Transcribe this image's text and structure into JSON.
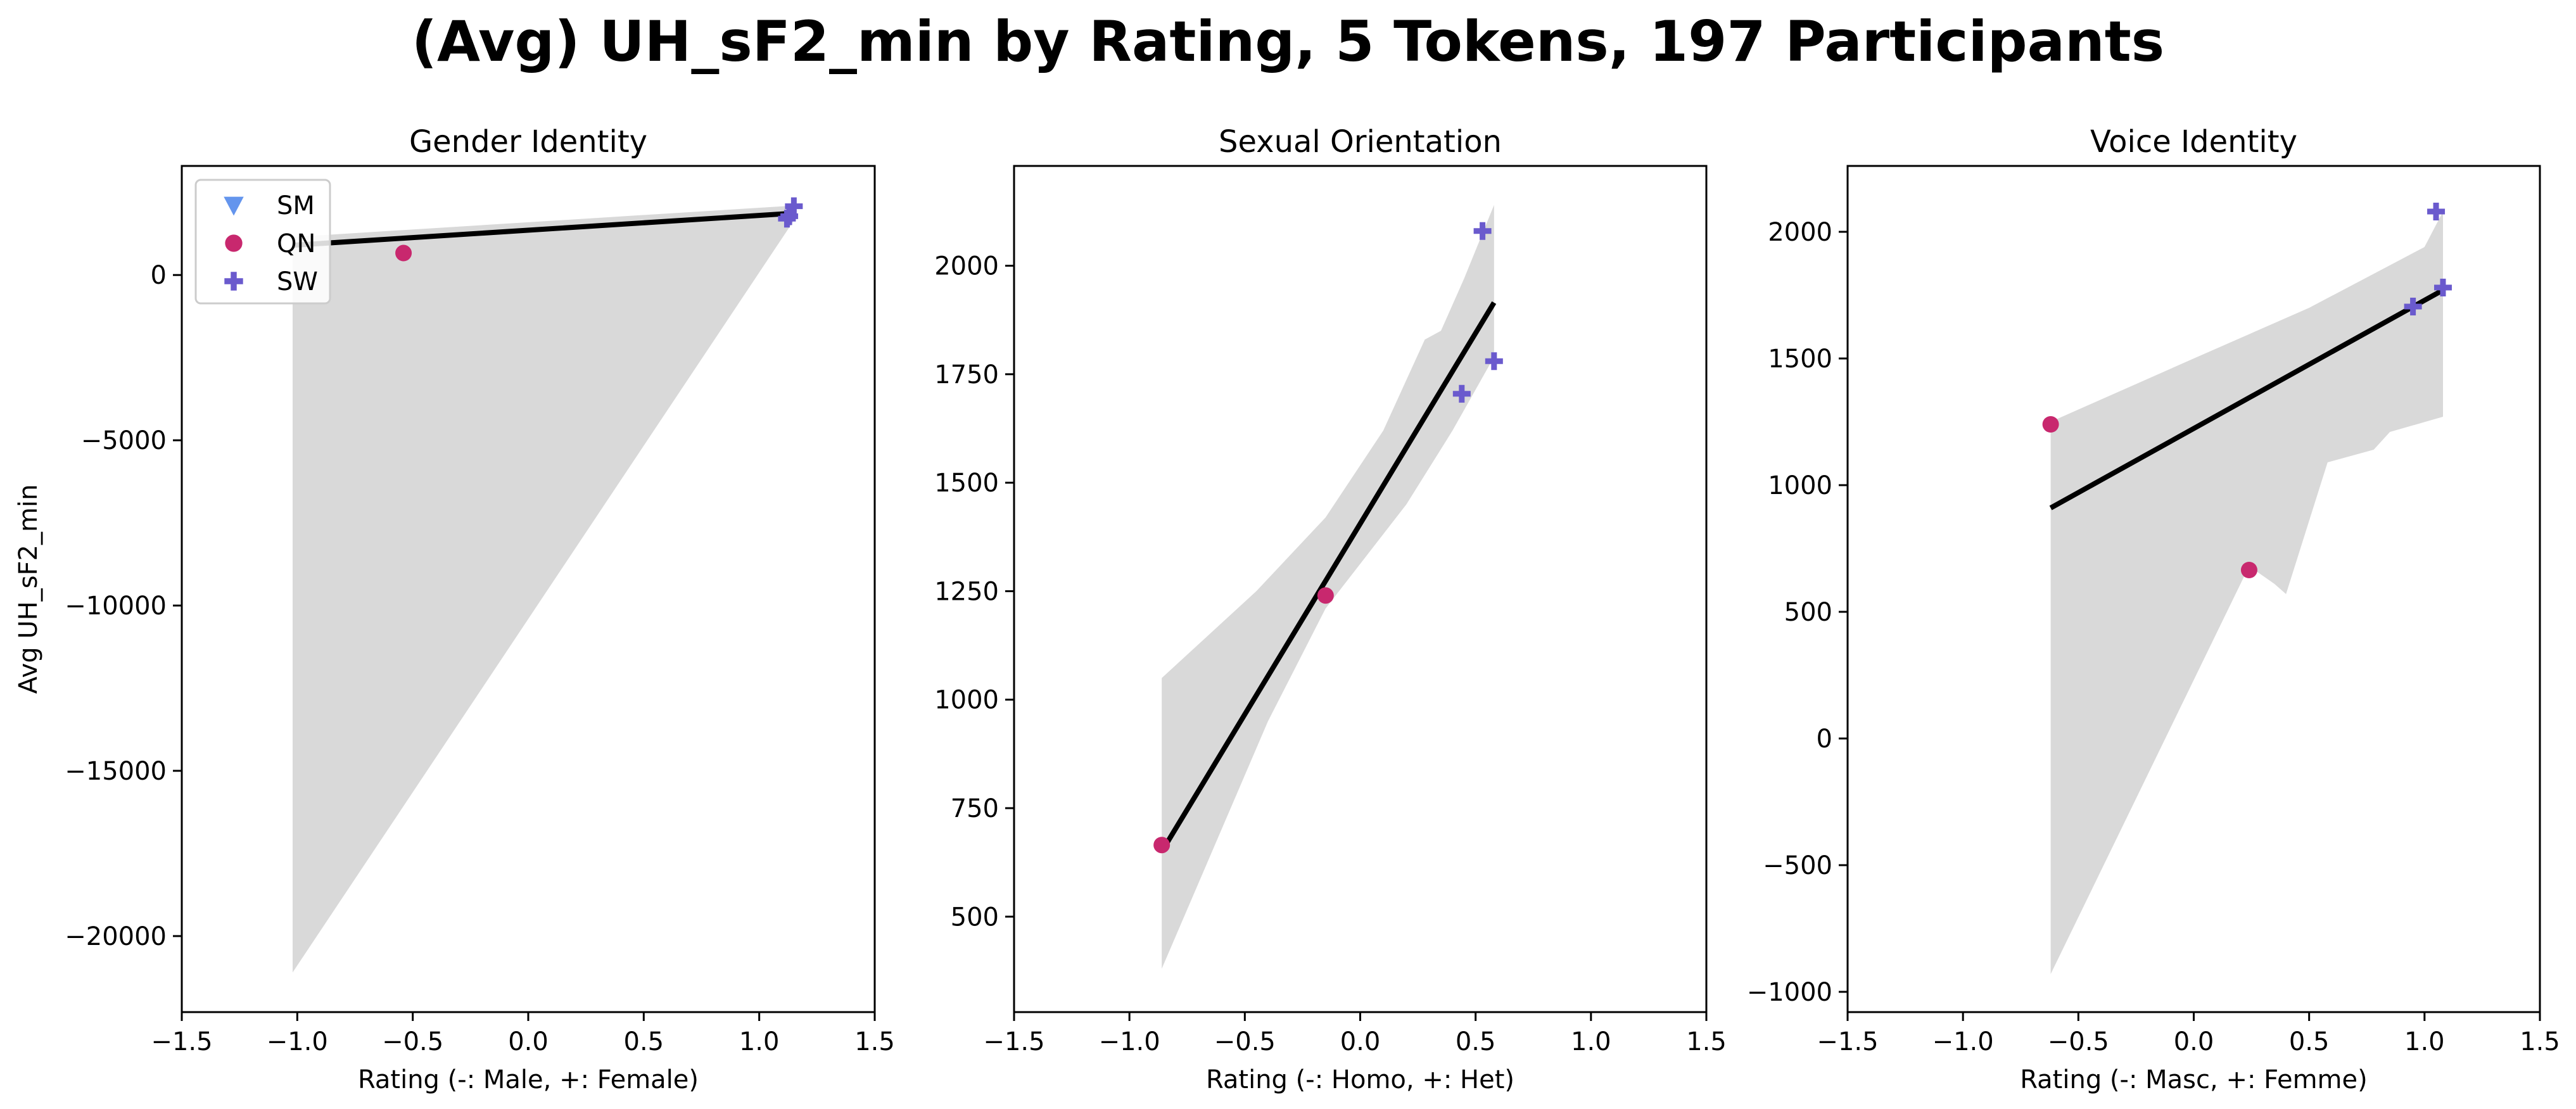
{
  "figure": {
    "title": "(Avg) UH_sF2_min by Rating, 5 Tokens, 197 Participants"
  },
  "colors": {
    "SM": "#6495ED",
    "QN": "#C8286E",
    "SW": "#6A5ACD",
    "fit": "#000000",
    "band": "#d9d9d9"
  },
  "chart_data": [
    {
      "type": "scatter",
      "title": "Gender Identity",
      "xlabel": "Rating (-: Male, +: Female)",
      "ylabel": "Avg UH_sF2_min",
      "xlim": [
        -1.5,
        1.5
      ],
      "ylim": [
        -22300,
        3300
      ],
      "xticks": [
        -1.5,
        -1.0,
        -0.5,
        0.0,
        0.5,
        1.0,
        1.5
      ],
      "yticks": [
        0,
        -5000,
        -10000,
        -15000,
        -20000
      ],
      "legend": {
        "placement": "top-left",
        "entries": [
          {
            "label": "SM",
            "marker": "triangle-down",
            "series": "SM"
          },
          {
            "label": "QN",
            "marker": "circle",
            "series": "QN"
          },
          {
            "label": "SW",
            "marker": "plus",
            "series": "SW"
          }
        ]
      },
      "series": [
        {
          "name": "QN",
          "marker": "circle",
          "points": [
            [
              -0.54,
              665
            ]
          ]
        },
        {
          "name": "SW",
          "marker": "plus",
          "points": [
            [
              1.12,
              1705
            ],
            [
              1.15,
              2080
            ],
            [
              1.13,
              1780
            ]
          ]
        }
      ],
      "fit": {
        "x": [
          -1.02,
          1.15
        ],
        "y": [
          900,
          1870
        ]
      },
      "ci": [
        [
          -1.02,
          1150
        ],
        [
          1.15,
          2100
        ],
        [
          1.15,
          1650
        ],
        [
          -1.02,
          -21100
        ]
      ]
    },
    {
      "type": "scatter",
      "title": "Sexual Orientation",
      "xlabel": "Rating (-: Homo, +: Het)",
      "ylabel": "",
      "xlim": [
        -1.5,
        1.5
      ],
      "ylim": [
        280,
        2230
      ],
      "xticks": [
        -1.5,
        -1.0,
        -0.5,
        0.0,
        0.5,
        1.0,
        1.5
      ],
      "yticks": [
        500,
        750,
        1000,
        1250,
        1500,
        1750,
        2000
      ],
      "series": [
        {
          "name": "QN",
          "marker": "circle",
          "points": [
            [
              -0.86,
              665
            ],
            [
              -0.15,
              1240
            ]
          ]
        },
        {
          "name": "SW",
          "marker": "plus",
          "points": [
            [
              0.53,
              2080
            ],
            [
              0.58,
              1780
            ],
            [
              0.44,
              1705
            ]
          ]
        }
      ],
      "fit": {
        "x": [
          -0.86,
          0.58
        ],
        "y": [
          650,
          1915
        ]
      },
      "ci": [
        [
          -0.86,
          1050
        ],
        [
          -0.45,
          1250
        ],
        [
          -0.15,
          1420
        ],
        [
          0.1,
          1620
        ],
        [
          0.28,
          1830
        ],
        [
          0.35,
          1850
        ],
        [
          0.45,
          1970
        ],
        [
          0.58,
          2140
        ],
        [
          0.58,
          1790
        ],
        [
          0.4,
          1620
        ],
        [
          0.2,
          1450
        ],
        [
          -0.15,
          1210
        ],
        [
          -0.4,
          950
        ],
        [
          -0.86,
          380
        ]
      ]
    },
    {
      "type": "scatter",
      "title": "Voice Identity",
      "xlabel": "Rating (-: Masc, +: Femme)",
      "ylabel": "",
      "xlim": [
        -1.5,
        1.5
      ],
      "ylim": [
        -1080,
        2260
      ],
      "xticks": [
        -1.5,
        -1.0,
        -0.5,
        0.0,
        0.5,
        1.0,
        1.5
      ],
      "yticks": [
        -1000,
        -500,
        0,
        500,
        1000,
        1500,
        2000
      ],
      "series": [
        {
          "name": "QN",
          "marker": "circle",
          "points": [
            [
              -0.62,
              1240
            ],
            [
              0.24,
              665
            ]
          ]
        },
        {
          "name": "SW",
          "marker": "plus",
          "points": [
            [
              1.05,
              2080
            ],
            [
              1.08,
              1780
            ],
            [
              0.95,
              1705
            ]
          ]
        }
      ],
      "fit": {
        "x": [
          -0.62,
          1.08
        ],
        "y": [
          910,
          1770
        ]
      },
      "ci": [
        [
          -0.62,
          1250
        ],
        [
          0.0,
          1500
        ],
        [
          0.5,
          1700
        ],
        [
          1.0,
          1940
        ],
        [
          1.08,
          2080
        ],
        [
          1.08,
          1270
        ],
        [
          0.85,
          1210
        ],
        [
          0.78,
          1140
        ],
        [
          0.7,
          1120
        ],
        [
          0.58,
          1090
        ],
        [
          0.4,
          570
        ],
        [
          0.35,
          610
        ],
        [
          0.24,
          680
        ],
        [
          -0.62,
          -930
        ]
      ]
    }
  ]
}
